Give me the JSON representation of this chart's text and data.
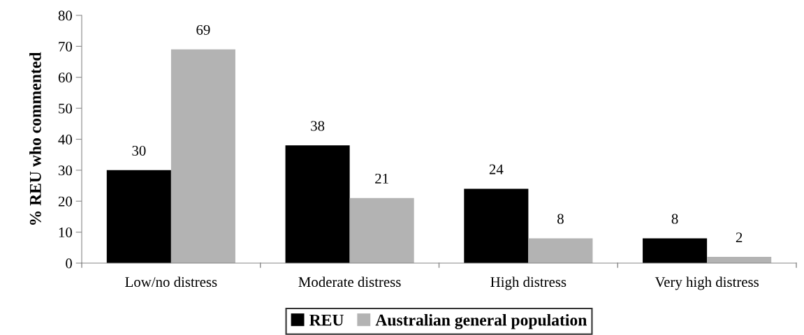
{
  "chart_data": {
    "type": "bar",
    "ylabel": "% REU who commented",
    "categories": [
      "Low/no distress",
      "Moderate distress",
      "High distress",
      "Very high distress"
    ],
    "series": [
      {
        "name": "REU",
        "color": "#000000",
        "values": [
          30,
          38,
          24,
          8
        ]
      },
      {
        "name": "Australian general population",
        "color": "#b3b3b3",
        "values": [
          69,
          21,
          8,
          2
        ]
      }
    ],
    "ylim": [
      0,
      80
    ],
    "yticks": [
      0,
      10,
      20,
      30,
      40,
      50,
      60,
      70,
      80
    ],
    "data_labels": true,
    "grid": false,
    "legend": "bottom"
  }
}
